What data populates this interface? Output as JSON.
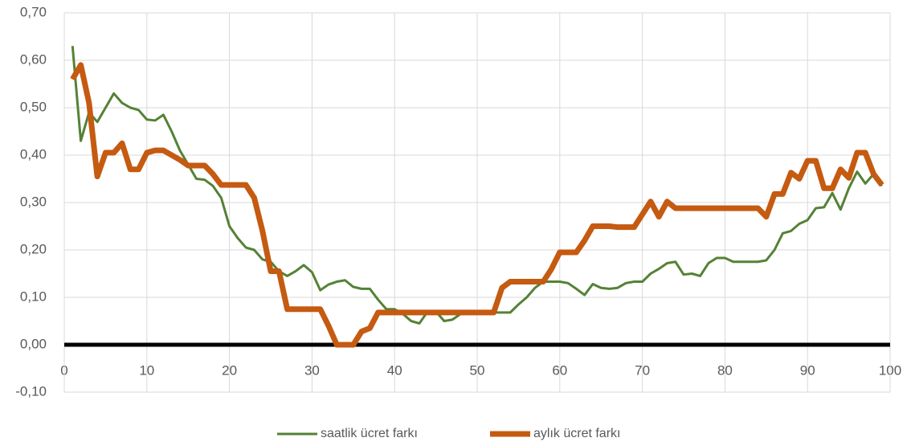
{
  "chart_data": {
    "type": "line",
    "x": [
      1,
      2,
      3,
      4,
      5,
      6,
      7,
      8,
      9,
      10,
      11,
      12,
      13,
      14,
      15,
      16,
      17,
      18,
      19,
      20,
      21,
      22,
      23,
      24,
      25,
      26,
      27,
      28,
      29,
      30,
      31,
      32,
      33,
      34,
      35,
      36,
      37,
      38,
      39,
      40,
      41,
      42,
      43,
      44,
      45,
      46,
      47,
      48,
      49,
      50,
      51,
      52,
      53,
      54,
      55,
      56,
      57,
      58,
      59,
      60,
      61,
      62,
      63,
      64,
      65,
      66,
      67,
      68,
      69,
      70,
      71,
      72,
      73,
      74,
      75,
      76,
      77,
      78,
      79,
      80,
      81,
      82,
      83,
      84,
      85,
      86,
      87,
      88,
      89,
      90,
      91,
      92,
      93,
      94,
      95,
      96,
      97,
      98,
      99
    ],
    "series": [
      {
        "name": "saatlik ücret farkı",
        "color": "#548235",
        "values": [
          0.63,
          0.43,
          0.49,
          0.47,
          0.5,
          0.53,
          0.51,
          0.5,
          0.495,
          0.475,
          0.473,
          0.485,
          0.45,
          0.41,
          0.38,
          0.35,
          0.348,
          0.335,
          0.31,
          0.25,
          0.225,
          0.205,
          0.2,
          0.18,
          0.175,
          0.155,
          0.145,
          0.155,
          0.168,
          0.153,
          0.115,
          0.127,
          0.133,
          0.136,
          0.122,
          0.118,
          0.118,
          0.095,
          0.075,
          0.075,
          0.065,
          0.05,
          0.045,
          0.07,
          0.07,
          0.05,
          0.053,
          0.065,
          0.065,
          0.068,
          0.068,
          0.068,
          0.068,
          0.068,
          0.085,
          0.1,
          0.12,
          0.133,
          0.133,
          0.133,
          0.13,
          0.118,
          0.105,
          0.128,
          0.12,
          0.118,
          0.12,
          0.13,
          0.133,
          0.133,
          0.15,
          0.16,
          0.172,
          0.175,
          0.148,
          0.15,
          0.145,
          0.172,
          0.183,
          0.183,
          0.175,
          0.175,
          0.175,
          0.175,
          0.178,
          0.2,
          0.235,
          0.24,
          0.255,
          0.263,
          0.288,
          0.29,
          0.32,
          0.285,
          0.33,
          0.365,
          0.34,
          0.36,
          0.335
        ]
      },
      {
        "name": "aylık ücret farkı",
        "color": "#c55a11",
        "values": [
          0.56,
          0.59,
          0.51,
          0.355,
          0.405,
          0.405,
          0.425,
          0.37,
          0.37,
          0.405,
          0.41,
          0.41,
          0.4,
          0.39,
          0.378,
          0.378,
          0.378,
          0.36,
          0.337,
          0.337,
          0.337,
          0.337,
          0.31,
          0.24,
          0.155,
          0.155,
          0.075,
          0.075,
          0.075,
          0.075,
          0.075,
          0.04,
          0,
          0,
          0,
          0.028,
          0.035,
          0.068,
          0.068,
          0.068,
          0.068,
          0.068,
          0.068,
          0.068,
          0.068,
          0.068,
          0.068,
          0.068,
          0.068,
          0.068,
          0.068,
          0.068,
          0.12,
          0.133,
          0.133,
          0.133,
          0.133,
          0.133,
          0.16,
          0.195,
          0.195,
          0.195,
          0.22,
          0.25,
          0.25,
          0.25,
          0.248,
          0.248,
          0.248,
          0.275,
          0.302,
          0.27,
          0.302,
          0.288,
          0.288,
          0.288,
          0.288,
          0.288,
          0.288,
          0.288,
          0.288,
          0.288,
          0.288,
          0.288,
          0.27,
          0.318,
          0.318,
          0.363,
          0.35,
          0.388,
          0.388,
          0.33,
          0.33,
          0.37,
          0.352,
          0.405,
          0.405,
          0.36,
          0.337
        ]
      }
    ],
    "xlim": [
      0,
      100
    ],
    "xticks": [
      0,
      10,
      20,
      30,
      40,
      50,
      60,
      70,
      80,
      90,
      100
    ],
    "ylim": [
      -0.1,
      0.7
    ],
    "yticks": [
      {
        "value": -0.1,
        "label": "-0,10"
      },
      {
        "value": 0,
        "label": "0,00"
      },
      {
        "value": 0.1,
        "label": "0,10"
      },
      {
        "value": 0.2,
        "label": "0,20"
      },
      {
        "value": 0.3,
        "label": "0,30"
      },
      {
        "value": 0.4,
        "label": "0,40"
      },
      {
        "value": 0.5,
        "label": "0,50"
      },
      {
        "value": 0.6,
        "label": "0,60"
      },
      {
        "value": 0.7,
        "label": "0,70"
      }
    ],
    "grid": true,
    "legend": "bottom"
  }
}
